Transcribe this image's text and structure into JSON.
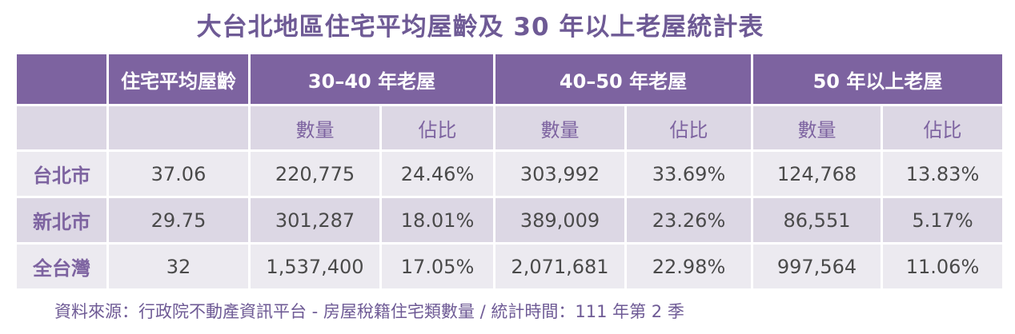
{
  "title": "大台北地區住宅平均屋齡及 30 年以上老屋統計表",
  "table": {
    "header_groups": [
      "",
      "住宅平均屋齡",
      "30–40 年老屋",
      "40–50 年老屋",
      "50 年以上老屋"
    ],
    "sub_headers": [
      "",
      "",
      "數量",
      "佔比",
      "數量",
      "佔比",
      "數量",
      "佔比"
    ],
    "rows": [
      {
        "name": "台北市",
        "avg_age": "37.06",
        "c30_count": "220,775",
        "c30_ratio": "24.46%",
        "c40_count": "303,992",
        "c40_ratio": "33.69%",
        "c50_count": "124,768",
        "c50_ratio": "13.83%"
      },
      {
        "name": "新北市",
        "avg_age": "29.75",
        "c30_count": "301,287",
        "c30_ratio": "18.01%",
        "c40_count": "389,009",
        "c40_ratio": "23.26%",
        "c50_count": "86,551",
        "c50_ratio": "5.17%"
      },
      {
        "name": "全台灣",
        "avg_age": "32",
        "c30_count": "1,537,400",
        "c30_ratio": "17.05%",
        "c40_count": "2,071,681",
        "c40_ratio": "22.98%",
        "c50_count": "997,564",
        "c50_ratio": "11.06%"
      }
    ]
  },
  "source": "資料來源：行政院不動產資訊平台 - 房屋稅籍住宅類數量 / 統計時間：111 年第 2 季",
  "colors": {
    "accent": "#7d63a0",
    "header_bg": "#7d63a0",
    "band_dark": "#dcd7e4",
    "band_light": "#eceaf0"
  }
}
